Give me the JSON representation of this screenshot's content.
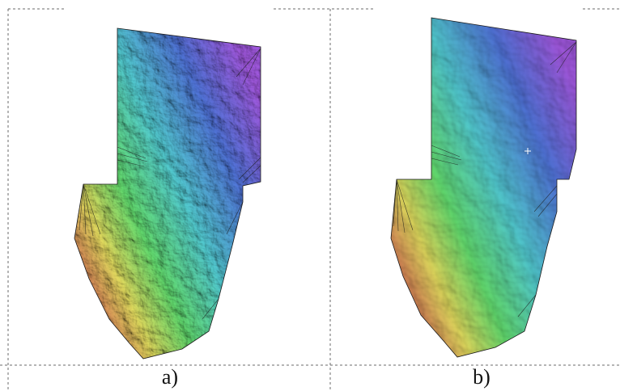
{
  "figure": {
    "panels": [
      {
        "id": "a",
        "caption": "a)"
      },
      {
        "id": "b",
        "caption": "b)"
      }
    ],
    "colors": {
      "frame_line": "#6b6b6b",
      "dem_green": "#5fd36a",
      "dem_cyan": "#4fc3c8",
      "dem_blue": "#4d6fd0",
      "dem_purple": "#9a55d6",
      "dem_yellow": "#d8d25a",
      "dem_red": "#c8554f",
      "background": "#ffffff"
    }
  }
}
